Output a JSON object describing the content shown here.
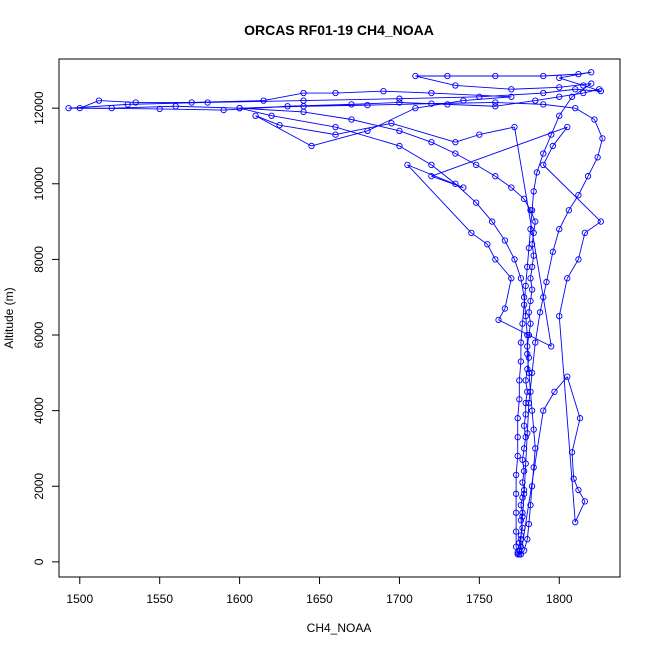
{
  "chart_data": {
    "type": "scatter",
    "title": "ORCAS RF01-19 CH4_NOAA",
    "xlabel": "CH4_NOAA",
    "ylabel": "Altitude (m)",
    "xlim": [
      1487,
      1838
    ],
    "ylim": [
      -400,
      13300
    ],
    "x_ticks": [
      1500,
      1550,
      1600,
      1650,
      1700,
      1750,
      1800
    ],
    "y_ticks": [
      0,
      2000,
      4000,
      6000,
      8000,
      10000,
      12000
    ],
    "grid": false,
    "legend": "none",
    "marker": "open-circle",
    "connect_points": true,
    "series_color": "#0000ff",
    "series": [
      {
        "values": [
          [
            1774,
            200
          ],
          [
            1775,
            300
          ],
          [
            1776,
            400
          ],
          [
            1775,
            500
          ],
          [
            1776,
            700
          ],
          [
            1777,
            900
          ],
          [
            1776,
            1100
          ],
          [
            1777,
            1300
          ],
          [
            1776,
            1500
          ],
          [
            1777,
            1700
          ],
          [
            1778,
            1900
          ],
          [
            1777,
            2100
          ],
          [
            1778,
            2400
          ],
          [
            1777,
            2700
          ],
          [
            1778,
            3000
          ],
          [
            1779,
            3300
          ],
          [
            1778,
            3600
          ],
          [
            1779,
            3900
          ],
          [
            1779,
            4200
          ],
          [
            1780,
            4500
          ],
          [
            1779,
            4800
          ],
          [
            1780,
            5100
          ],
          [
            1781,
            5400
          ],
          [
            1780,
            5700
          ],
          [
            1781,
            6000
          ],
          [
            1782,
            6300
          ],
          [
            1781,
            6600
          ],
          [
            1782,
            6900
          ],
          [
            1783,
            7200
          ],
          [
            1782,
            7500
          ],
          [
            1783,
            7800
          ],
          [
            1784,
            8100
          ],
          [
            1783,
            8400
          ],
          [
            1784,
            8700
          ],
          [
            1785,
            9000
          ],
          [
            1782,
            9300
          ],
          [
            1778,
            9600
          ],
          [
            1770,
            9900
          ],
          [
            1760,
            10200
          ],
          [
            1748,
            10500
          ],
          [
            1735,
            10800
          ],
          [
            1720,
            11100
          ],
          [
            1700,
            11400
          ],
          [
            1670,
            11700
          ],
          [
            1640,
            11900
          ],
          [
            1600,
            12000
          ],
          [
            1560,
            12050
          ],
          [
            1520,
            12000
          ],
          [
            1493,
            12000
          ],
          [
            1530,
            12100
          ],
          [
            1580,
            12150
          ],
          [
            1640,
            12200
          ],
          [
            1700,
            12250
          ],
          [
            1750,
            12300
          ],
          [
            1790,
            12400
          ],
          [
            1810,
            12500
          ],
          [
            1826,
            12450
          ],
          [
            1815,
            12600
          ],
          [
            1800,
            12800
          ],
          [
            1820,
            12950
          ],
          [
            1812,
            12900
          ],
          [
            1790,
            12850
          ],
          [
            1760,
            12850
          ],
          [
            1730,
            12850
          ],
          [
            1710,
            12850
          ],
          [
            1735,
            12600
          ],
          [
            1770,
            12500
          ],
          [
            1800,
            12550
          ],
          [
            1820,
            12650
          ],
          [
            1808,
            12300
          ],
          [
            1800,
            11800
          ],
          [
            1795,
            11300
          ],
          [
            1790,
            10800
          ],
          [
            1786,
            10300
          ],
          [
            1784,
            9800
          ],
          [
            1783,
            9300
          ],
          [
            1782,
            8800
          ],
          [
            1781,
            8300
          ],
          [
            1780,
            7800
          ],
          [
            1779,
            7300
          ],
          [
            1778,
            6800
          ],
          [
            1777,
            6300
          ],
          [
            1776,
            5800
          ],
          [
            1776,
            5300
          ],
          [
            1775,
            4800
          ],
          [
            1775,
            4300
          ],
          [
            1774,
            3800
          ],
          [
            1774,
            3300
          ],
          [
            1774,
            2800
          ],
          [
            1773,
            2300
          ],
          [
            1773,
            1800
          ],
          [
            1773,
            1300
          ],
          [
            1773,
            800
          ],
          [
            1773,
            400
          ],
          [
            1774,
            250
          ],
          [
            1775,
            200
          ],
          [
            1776,
            600
          ],
          [
            1777,
            1200
          ],
          [
            1778,
            1800
          ],
          [
            1779,
            2600
          ],
          [
            1780,
            3400
          ],
          [
            1781,
            4200
          ],
          [
            1783,
            5000
          ],
          [
            1785,
            5800
          ],
          [
            1788,
            6600
          ],
          [
            1792,
            7400
          ],
          [
            1796,
            8200
          ],
          [
            1800,
            8800
          ],
          [
            1806,
            9300
          ],
          [
            1812,
            9700
          ],
          [
            1818,
            10200
          ],
          [
            1824,
            10700
          ],
          [
            1827,
            11200
          ],
          [
            1822,
            11700
          ],
          [
            1810,
            12000
          ],
          [
            1790,
            12100
          ],
          [
            1760,
            12150
          ],
          [
            1720,
            12120
          ],
          [
            1680,
            12080
          ],
          [
            1640,
            12050
          ],
          [
            1600,
            12000
          ],
          [
            1620,
            11800
          ],
          [
            1660,
            11500
          ],
          [
            1700,
            11000
          ],
          [
            1720,
            10500
          ],
          [
            1735,
            10000
          ],
          [
            1748,
            9500
          ],
          [
            1758,
            9000
          ],
          [
            1766,
            8500
          ],
          [
            1772,
            8000
          ],
          [
            1776,
            7500
          ],
          [
            1778,
            7000
          ],
          [
            1779,
            6500
          ],
          [
            1780,
            6000
          ],
          [
            1780,
            5500
          ],
          [
            1781,
            5000
          ],
          [
            1782,
            4500
          ],
          [
            1783,
            4000
          ],
          [
            1784,
            3500
          ],
          [
            1785,
            3000
          ],
          [
            1784,
            2500
          ],
          [
            1783,
            2000
          ],
          [
            1782,
            1500
          ],
          [
            1781,
            1000
          ],
          [
            1780,
            600
          ],
          [
            1778,
            300
          ],
          [
            1776,
            200
          ],
          [
            1790,
            4000
          ],
          [
            1797,
            4500
          ],
          [
            1805,
            4900
          ],
          [
            1813,
            3800
          ],
          [
            1808,
            2900
          ],
          [
            1809,
            2200
          ],
          [
            1812,
            1900
          ],
          [
            1816,
            1600
          ],
          [
            1810,
            1050
          ],
          [
            1800,
            6500
          ],
          [
            1805,
            7500
          ],
          [
            1812,
            8000
          ],
          [
            1816,
            8700
          ],
          [
            1826,
            9000
          ],
          [
            1790,
            10500
          ],
          [
            1796,
            11000
          ],
          [
            1805,
            11500
          ],
          [
            1720,
            10200
          ],
          [
            1740,
            9900
          ],
          [
            1705,
            10500
          ],
          [
            1745,
            8700
          ],
          [
            1755,
            8400
          ],
          [
            1760,
            8000
          ],
          [
            1770,
            7500
          ],
          [
            1766,
            6700
          ],
          [
            1762,
            6400
          ],
          [
            1795,
            5700
          ],
          [
            1790,
            7000
          ],
          [
            1772,
            11500
          ],
          [
            1750,
            11300
          ],
          [
            1735,
            11100
          ],
          [
            1695,
            11600
          ],
          [
            1660,
            11300
          ],
          [
            1625,
            11550
          ],
          [
            1610,
            11800
          ],
          [
            1645,
            11000
          ],
          [
            1680,
            11400
          ],
          [
            1710,
            12000
          ],
          [
            1740,
            12200
          ],
          [
            1770,
            12300
          ],
          [
            1720,
            12400
          ],
          [
            1690,
            12450
          ],
          [
            1660,
            12400
          ],
          [
            1640,
            12400
          ],
          [
            1615,
            12200
          ],
          [
            1570,
            12150
          ],
          [
            1535,
            12150
          ],
          [
            1512,
            12200
          ],
          [
            1500,
            12000
          ],
          [
            1550,
            11980
          ],
          [
            1590,
            11950
          ],
          [
            1630,
            12050
          ],
          [
            1670,
            12100
          ],
          [
            1700,
            12150
          ],
          [
            1730,
            12100
          ],
          [
            1760,
            12050
          ],
          [
            1785,
            12200
          ],
          [
            1800,
            12300
          ],
          [
            1815,
            12400
          ],
          [
            1825,
            12500
          ]
        ]
      }
    ]
  }
}
